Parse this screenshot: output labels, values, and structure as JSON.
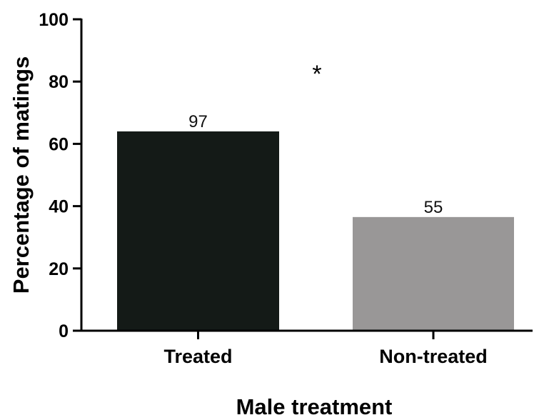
{
  "chart_data": {
    "type": "bar",
    "title": "",
    "xlabel": "Male treatment",
    "ylabel": "Percentage of matings",
    "categories": [
      "Treated",
      "Non-treated"
    ],
    "values": [
      64,
      36.5
    ],
    "data_labels": [
      "97",
      "55"
    ],
    "colors": [
      "#141a17",
      "#999797"
    ],
    "ylim": [
      0,
      100
    ],
    "yticks": [
      0,
      20,
      40,
      60,
      80,
      100
    ],
    "ytick_labels": [
      "0",
      "20",
      "40",
      "60",
      "80",
      "100"
    ],
    "grid": false,
    "legend": "none",
    "annotations": [
      {
        "text": "*"
      }
    ]
  }
}
